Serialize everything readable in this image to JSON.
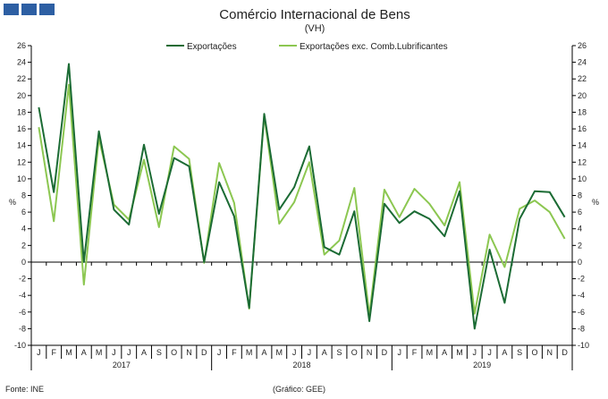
{
  "header": {
    "title": "Comércio Internacional de Bens",
    "subtitle": "(VH)"
  },
  "footer": {
    "source": "Fonte: INE",
    "credit": "(Gráfico: GEE)"
  },
  "colors": {
    "exports": "#1b6b34",
    "exports_exc_fuel": "#8cc751",
    "logo": "#2d5fa3"
  },
  "chart_data": {
    "type": "line",
    "title": "Comércio Internacional de Bens",
    "subtitle": "(VH)",
    "ylabel": "%",
    "ylabel_right": "%",
    "ylim": [
      -10,
      26
    ],
    "yticks": [
      -10,
      -8,
      -6,
      -4,
      -2,
      0,
      2,
      4,
      6,
      8,
      10,
      12,
      14,
      16,
      18,
      20,
      22,
      24,
      26
    ],
    "grid": false,
    "legend_position": "top-center",
    "months": [
      "J",
      "F",
      "M",
      "A",
      "M",
      "J",
      "J",
      "A",
      "S",
      "O",
      "N",
      "D",
      "J",
      "F",
      "M",
      "A",
      "M",
      "J",
      "J",
      "A",
      "S",
      "O",
      "N",
      "D",
      "J",
      "F",
      "M",
      "A",
      "M",
      "J",
      "J",
      "A",
      "S",
      "O",
      "N",
      "D"
    ],
    "years": [
      {
        "label": "2017",
        "start": 0,
        "end": 11
      },
      {
        "label": "2018",
        "start": 12,
        "end": 23
      },
      {
        "label": "2019",
        "start": 24,
        "end": 35
      }
    ],
    "series": [
      {
        "name": "Exportações",
        "color": "#1b6b34",
        "values": [
          18.6,
          8.4,
          23.8,
          0,
          15.7,
          6.3,
          4.5,
          14.1,
          5.8,
          12.5,
          11.5,
          0,
          9.6,
          5.5,
          -5.5,
          17.8,
          6.3,
          9.0,
          13.9,
          1.8,
          0.9,
          6.1,
          -7.1,
          7.0,
          4.7,
          6.1,
          5.2,
          3.1,
          8.5,
          -8.0,
          1.5,
          -4.9,
          5.2,
          8.5,
          8.4,
          5.4
        ]
      },
      {
        "name": "Exportações exc. Comb.Lubrificantes",
        "color": "#8cc751",
        "values": [
          16.2,
          4.9,
          21.3,
          -2.7,
          14.9,
          6.9,
          5.1,
          12.3,
          4.2,
          13.9,
          12.4,
          -0.1,
          11.9,
          7.1,
          -5.6,
          17.6,
          4.6,
          7.2,
          12.0,
          0.9,
          2.6,
          8.9,
          -6.4,
          8.7,
          5.4,
          8.8,
          7.0,
          4.4,
          9.6,
          -6.2,
          3.3,
          -0.6,
          6.4,
          7.4,
          6.0,
          2.8
        ]
      }
    ]
  }
}
